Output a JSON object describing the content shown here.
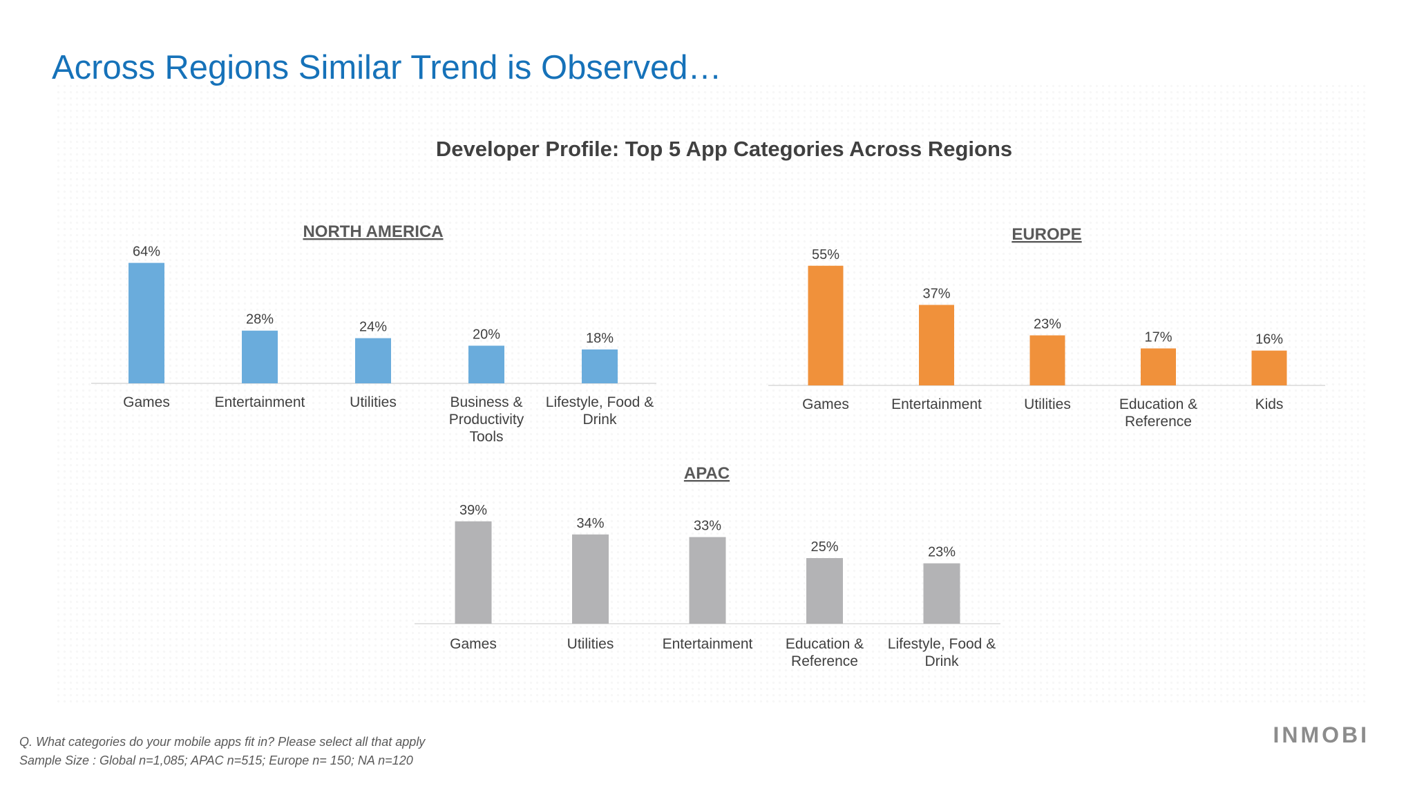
{
  "slide": {
    "title": "Across Regions Similar Trend is Observed…",
    "chart_title": "Developer Profile: Top 5 App Categories Across Regions",
    "footnote_question": "Q. What categories do your mobile apps fit in? Please select all that apply",
    "footnote_sample": "Sample Size : Global n=1,085; APAC n=515; Europe n= 150; NA n=120",
    "logo": "INMOBI"
  },
  "chart_data": [
    {
      "type": "bar",
      "title": "NORTH AMERICA",
      "color": "#6aacdc",
      "categories": [
        "Games",
        "Entertainment",
        "Utilities",
        "Business & Productivity Tools",
        "Lifestyle, Food & Drink"
      ],
      "values": [
        64,
        28,
        24,
        20,
        18
      ],
      "labels": [
        "64%",
        "28%",
        "24%",
        "20%",
        "18%"
      ]
    },
    {
      "type": "bar",
      "title": "EUROPE",
      "color": "#f0913b",
      "categories": [
        "Games",
        "Entertainment",
        "Utilities",
        "Education & Reference",
        "Kids"
      ],
      "values": [
        55,
        37,
        23,
        17,
        16
      ],
      "labels": [
        "55%",
        "37%",
        "23%",
        "17%",
        "16%"
      ]
    },
    {
      "type": "bar",
      "title": "APAC",
      "color": "#b3b3b5",
      "categories": [
        "Games",
        "Utilities",
        "Entertainment",
        "Education & Reference",
        "Lifestyle, Food & Drink"
      ],
      "values": [
        39,
        34,
        33,
        25,
        23
      ],
      "labels": [
        "39%",
        "34%",
        "33%",
        "25%",
        "23%"
      ]
    }
  ]
}
